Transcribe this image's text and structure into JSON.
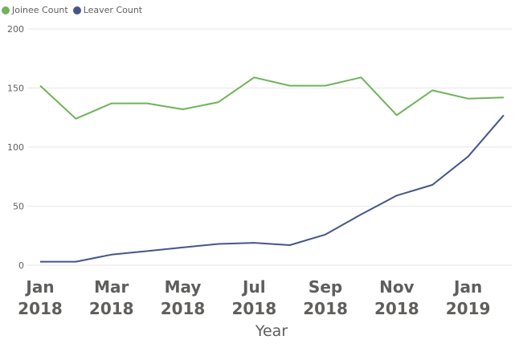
{
  "chart_data": {
    "type": "line",
    "title": "",
    "xlabel": "Year",
    "ylabel": "",
    "ylim": [
      0,
      200
    ],
    "yticks": [
      0,
      50,
      100,
      150,
      200
    ],
    "grid": true,
    "legend_position": "top-left",
    "x": [
      "Jan 2018",
      "Feb 2018",
      "Mar 2018",
      "Apr 2018",
      "May 2018",
      "Jun 2018",
      "Jul 2018",
      "Aug 2018",
      "Sep 2018",
      "Oct 2018",
      "Nov 2018",
      "Dec 2018",
      "Jan 2019",
      "Feb 2019"
    ],
    "xtick_labels": [
      {
        "index": 0,
        "line1": "Jan",
        "line2": "2018"
      },
      {
        "index": 2,
        "line1": "Mar",
        "line2": "2018"
      },
      {
        "index": 4,
        "line1": "May",
        "line2": "2018"
      },
      {
        "index": 6,
        "line1": "Jul",
        "line2": "2018"
      },
      {
        "index": 8,
        "line1": "Sep",
        "line2": "2018"
      },
      {
        "index": 10,
        "line1": "Nov",
        "line2": "2018"
      },
      {
        "index": 12,
        "line1": "Jan",
        "line2": "2019"
      }
    ],
    "series": [
      {
        "name": "Joinee Count",
        "color": "#6fb35a",
        "values": [
          152,
          124,
          137,
          137,
          132,
          138,
          159,
          152,
          152,
          159,
          127,
          148,
          141,
          142
        ]
      },
      {
        "name": "Leaver Count",
        "color": "#44568a",
        "values": [
          3,
          3,
          9,
          12,
          15,
          18,
          19,
          17,
          26,
          43,
          59,
          68,
          92,
          127
        ]
      }
    ]
  }
}
